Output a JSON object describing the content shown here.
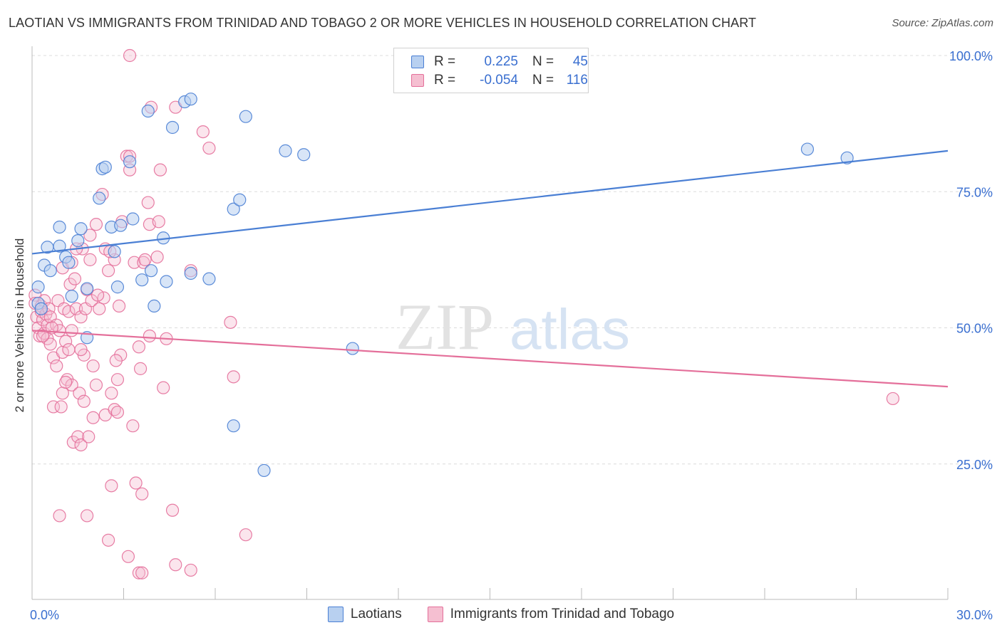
{
  "title": "LAOTIAN VS IMMIGRANTS FROM TRINIDAD AND TOBAGO 2 OR MORE VEHICLES IN HOUSEHOLD CORRELATION CHART",
  "source": "Source: ZipAtlas.com",
  "watermark": {
    "zip": "ZIP",
    "atlas": "atlas"
  },
  "colors": {
    "blue": "#4a7fd4",
    "blue_fill": "#b8d0f0",
    "pink": "#e46f9a",
    "pink_fill": "#f5bfd1",
    "axis_label": "#3a6fd0"
  },
  "legend_top": {
    "rows": [
      {
        "r_label": "R =",
        "r_value": "0.225",
        "n_label": "N =",
        "n_value": "45"
      },
      {
        "r_label": "R =",
        "r_value": "-0.054",
        "n_label": "N =",
        "n_value": "116"
      }
    ]
  },
  "bottom_legend": {
    "series1": "Laotians",
    "series2": "Immigrants from Trinidad and Tobago"
  },
  "chart_data": {
    "type": "scatter",
    "title": "LAOTIAN VS IMMIGRANTS FROM TRINIDAD AND TOBAGO 2 OR MORE VEHICLES IN HOUSEHOLD CORRELATION CHART",
    "xlabel": "",
    "ylabel": "2 or more Vehicles in Household",
    "xlim": [
      0,
      30
    ],
    "ylim": [
      0,
      105
    ],
    "x_tick_labels": [
      {
        "value": 0,
        "label": "0.0%"
      },
      {
        "value": 30,
        "label": "30.0%"
      }
    ],
    "y_tick_labels": [
      {
        "value": 25,
        "label": "25.0%"
      },
      {
        "value": 50,
        "label": "50.0%"
      },
      {
        "value": 75,
        "label": "75.0%"
      },
      {
        "value": 100,
        "label": "100.0%"
      }
    ],
    "series": [
      {
        "name": "Laotians",
        "trend": [
          [
            0,
            63.6
          ],
          [
            30,
            82.5
          ]
        ],
        "points": [
          [
            0.2,
            57.5
          ],
          [
            0.2,
            54.5
          ],
          [
            0.3,
            53.5
          ],
          [
            0.4,
            61.5
          ],
          [
            0.5,
            64.8
          ],
          [
            0.6,
            60.5
          ],
          [
            0.9,
            68.5
          ],
          [
            0.9,
            65.0
          ],
          [
            1.1,
            63.0
          ],
          [
            1.2,
            62.0
          ],
          [
            1.3,
            55.8
          ],
          [
            1.5,
            66.0
          ],
          [
            1.6,
            68.2
          ],
          [
            1.8,
            57.2
          ],
          [
            1.8,
            48.2
          ],
          [
            2.2,
            73.8
          ],
          [
            2.3,
            79.2
          ],
          [
            2.4,
            79.5
          ],
          [
            2.6,
            68.5
          ],
          [
            2.7,
            64.0
          ],
          [
            2.8,
            57.5
          ],
          [
            2.9,
            68.8
          ],
          [
            3.2,
            80.5
          ],
          [
            3.3,
            70.0
          ],
          [
            3.6,
            58.8
          ],
          [
            3.8,
            89.8
          ],
          [
            3.9,
            60.5
          ],
          [
            4.0,
            54.0
          ],
          [
            4.3,
            66.5
          ],
          [
            4.4,
            58.5
          ],
          [
            4.6,
            86.8
          ],
          [
            5.0,
            91.5
          ],
          [
            5.2,
            92.0
          ],
          [
            5.2,
            60.0
          ],
          [
            5.8,
            59.0
          ],
          [
            6.6,
            71.8
          ],
          [
            6.6,
            32.0
          ],
          [
            6.8,
            73.5
          ],
          [
            7.0,
            88.8
          ],
          [
            7.6,
            23.8
          ],
          [
            8.3,
            82.5
          ],
          [
            8.9,
            81.8
          ],
          [
            10.5,
            46.2
          ],
          [
            25.4,
            82.8
          ],
          [
            26.7,
            81.2
          ]
        ]
      },
      {
        "name": "Immigrants from Trinidad and Tobago",
        "trend": [
          [
            0,
            49.5
          ],
          [
            30,
            39.2
          ]
        ],
        "points": [
          [
            0.1,
            56.0
          ],
          [
            0.1,
            54.5
          ],
          [
            0.15,
            52.0
          ],
          [
            0.2,
            50.0
          ],
          [
            0.25,
            48.5
          ],
          [
            0.3,
            54.0
          ],
          [
            0.3,
            53.0
          ],
          [
            0.35,
            51.5
          ],
          [
            0.4,
            55.0
          ],
          [
            0.4,
            49.0
          ],
          [
            0.45,
            52.5
          ],
          [
            0.5,
            48.0
          ],
          [
            0.5,
            50.5
          ],
          [
            0.55,
            53.5
          ],
          [
            0.6,
            52.0
          ],
          [
            0.6,
            47.0
          ],
          [
            0.7,
            44.5
          ],
          [
            0.7,
            35.5
          ],
          [
            0.8,
            50.5
          ],
          [
            0.8,
            43.0
          ],
          [
            0.85,
            55.0
          ],
          [
            0.9,
            49.5
          ],
          [
            0.9,
            15.5
          ],
          [
            1.0,
            61.0
          ],
          [
            1.0,
            45.5
          ],
          [
            1.0,
            38.0
          ],
          [
            1.05,
            53.5
          ],
          [
            1.1,
            47.5
          ],
          [
            1.15,
            40.5
          ],
          [
            1.2,
            46.0
          ],
          [
            1.2,
            53.0
          ],
          [
            1.25,
            58.0
          ],
          [
            1.3,
            49.5
          ],
          [
            1.3,
            39.5
          ],
          [
            1.35,
            29.0
          ],
          [
            1.4,
            59.0
          ],
          [
            1.45,
            53.5
          ],
          [
            1.5,
            30.0
          ],
          [
            1.55,
            38.0
          ],
          [
            1.6,
            52.0
          ],
          [
            1.6,
            28.5
          ],
          [
            1.65,
            64.5
          ],
          [
            1.7,
            36.5
          ],
          [
            1.7,
            45.0
          ],
          [
            1.75,
            53.5
          ],
          [
            1.8,
            57.0
          ],
          [
            1.8,
            15.5
          ],
          [
            1.85,
            30.0
          ],
          [
            1.9,
            62.5
          ],
          [
            1.9,
            67.0
          ],
          [
            1.95,
            55.0
          ],
          [
            2.0,
            33.5
          ],
          [
            2.0,
            43.0
          ],
          [
            2.1,
            39.5
          ],
          [
            2.1,
            69.0
          ],
          [
            2.2,
            53.5
          ],
          [
            2.3,
            74.5
          ],
          [
            2.35,
            55.5
          ],
          [
            2.4,
            64.5
          ],
          [
            2.4,
            34.0
          ],
          [
            2.5,
            60.5
          ],
          [
            2.5,
            11.0
          ],
          [
            2.6,
            21.0
          ],
          [
            2.6,
            38.0
          ],
          [
            2.7,
            62.5
          ],
          [
            2.7,
            35.0
          ],
          [
            2.8,
            34.5
          ],
          [
            2.8,
            40.5
          ],
          [
            2.85,
            54.0
          ],
          [
            2.9,
            45.0
          ],
          [
            2.95,
            69.5
          ],
          [
            3.1,
            81.5
          ],
          [
            3.15,
            8.0
          ],
          [
            3.2,
            81.5
          ],
          [
            3.2,
            79.0
          ],
          [
            3.3,
            32.0
          ],
          [
            3.35,
            62.0
          ],
          [
            3.4,
            21.5
          ],
          [
            3.5,
            46.5
          ],
          [
            3.5,
            5.0
          ],
          [
            3.55,
            42.5
          ],
          [
            3.6,
            19.5
          ],
          [
            3.6,
            5.0
          ],
          [
            3.65,
            62.0
          ],
          [
            3.8,
            73.0
          ],
          [
            3.85,
            48.5
          ],
          [
            3.85,
            69.0
          ],
          [
            3.9,
            90.5
          ],
          [
            4.1,
            63.0
          ],
          [
            4.15,
            69.5
          ],
          [
            4.2,
            79.0
          ],
          [
            4.3,
            39.0
          ],
          [
            4.4,
            48.0
          ],
          [
            4.6,
            16.5
          ],
          [
            4.7,
            6.5
          ],
          [
            4.7,
            90.5
          ],
          [
            5.2,
            60.5
          ],
          [
            5.2,
            5.5
          ],
          [
            5.6,
            86.0
          ],
          [
            5.8,
            83.0
          ],
          [
            6.5,
            51.0
          ],
          [
            6.6,
            41.0
          ],
          [
            7.0,
            12.0
          ],
          [
            28.2,
            37.0
          ],
          [
            3.2,
            100.0
          ],
          [
            1.6,
            46.0
          ],
          [
            0.35,
            48.5
          ],
          [
            2.15,
            56.0
          ],
          [
            0.95,
            35.5
          ],
          [
            1.45,
            64.5
          ],
          [
            2.75,
            44.0
          ],
          [
            1.1,
            40.0
          ],
          [
            0.65,
            50.0
          ],
          [
            3.7,
            62.5
          ],
          [
            2.55,
            64.0
          ],
          [
            1.3,
            62.0
          ]
        ]
      }
    ]
  }
}
